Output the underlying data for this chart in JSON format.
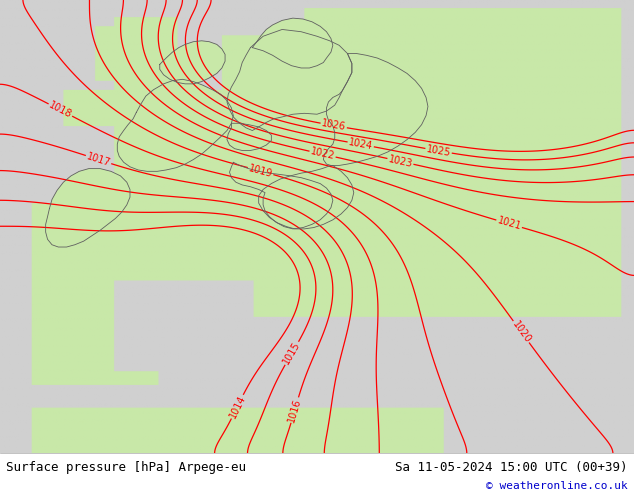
{
  "title_left": "Surface pressure [hPa] Arpege-eu",
  "title_right": "Sa 11-05-2024 15:00 UTC (00+39)",
  "copyright": "© weatheronline.co.uk",
  "bg_color_ocean": "#d0d0d0",
  "bg_color_land": "#c8e8a8",
  "contour_color": "#ff0000",
  "border_color": "#606060",
  "footer_bg": "#ffffff",
  "footer_text_color": "#000000",
  "copyright_color": "#0000cc",
  "figsize": [
    6.34,
    4.9
  ],
  "dpi": 100,
  "fontsize_footer": 9,
  "fontsize_label": 7
}
